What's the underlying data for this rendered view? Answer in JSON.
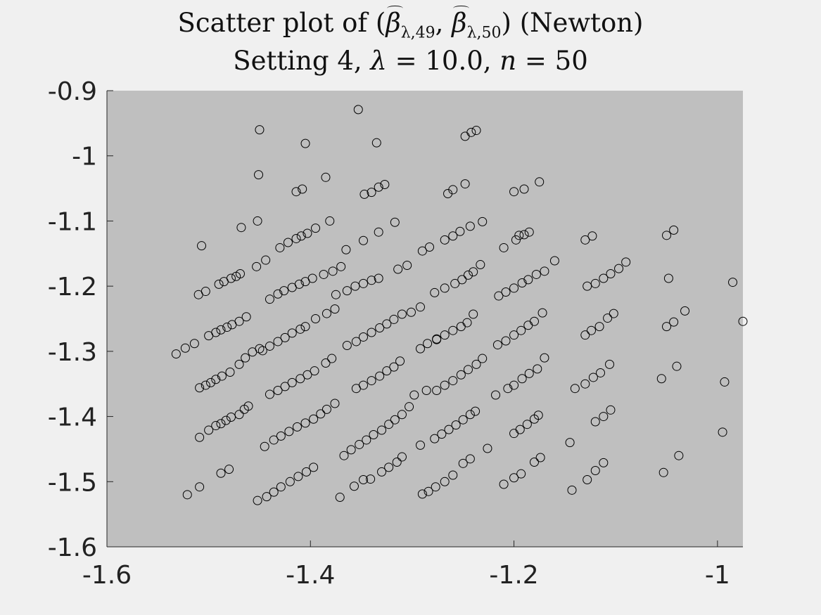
{
  "chart_data": {
    "type": "scatter",
    "title_line1_prefix": "Scatter plot of (",
    "title_beta1": "β",
    "title_sub1": "λ,49",
    "title_sep": ", ",
    "title_beta2": "β",
    "title_sub2": "λ,50",
    "title_line1_suffix": ") (Newton)",
    "title_line2_prefix": "Setting 4, ",
    "title_lambda": "λ",
    "title_lambda_value": " = 10.0, ",
    "title_n": "n",
    "title_n_value": " = 50",
    "xlim": [
      -1.6,
      -0.975
    ],
    "ylim": [
      -1.6,
      -0.9
    ],
    "x_ticks": [
      -1.6,
      -1.4,
      -1.2,
      -1.0
    ],
    "x_tick_labels": [
      "-1.6",
      "-1.4",
      "-1.2",
      "-1"
    ],
    "y_ticks": [
      -0.9,
      -1.0,
      -1.1,
      -1.2,
      -1.3,
      -1.4,
      -1.5,
      -1.6
    ],
    "y_tick_labels": [
      "-0.9",
      "-1",
      "-1.1",
      "-1.2",
      "-1.3",
      "-1.4",
      "-1.5",
      "-1.6"
    ],
    "marker": "open-circle",
    "marker_color": "#000000",
    "axes_background": "#bfbfbf",
    "figure_background": "#f0f0f0",
    "grid": false,
    "series": [
      {
        "points": [
          [
            -1.532,
            -1.304
          ],
          [
            -1.523,
            -1.295
          ],
          [
            -1.514,
            -1.288
          ],
          [
            -1.509,
            -1.356
          ],
          [
            -1.503,
            -1.352
          ],
          [
            -1.498,
            -1.348
          ],
          [
            -1.493,
            -1.343
          ],
          [
            -1.487,
            -1.338
          ],
          [
            -1.479,
            -1.332
          ],
          [
            -1.47,
            -1.32
          ],
          [
            -1.464,
            -1.31
          ],
          [
            -1.457,
            -1.301
          ],
          [
            -1.45,
            -1.296
          ],
          [
            -1.509,
            -1.432
          ],
          [
            -1.5,
            -1.421
          ],
          [
            -1.493,
            -1.414
          ],
          [
            -1.488,
            -1.411
          ],
          [
            -1.483,
            -1.406
          ],
          [
            -1.478,
            -1.401
          ],
          [
            -1.47,
            -1.397
          ],
          [
            -1.465,
            -1.389
          ],
          [
            -1.461,
            -1.384
          ],
          [
            -1.521,
            -1.52
          ],
          [
            -1.509,
            -1.508
          ],
          [
            -1.488,
            -1.487
          ],
          [
            -1.48,
            -1.481
          ],
          [
            -1.507,
            -1.138
          ],
          [
            -1.51,
            -1.213
          ],
          [
            -1.503,
            -1.208
          ],
          [
            -1.49,
            -1.197
          ],
          [
            -1.485,
            -1.193
          ],
          [
            -1.478,
            -1.188
          ],
          [
            -1.473,
            -1.185
          ],
          [
            -1.469,
            -1.181
          ],
          [
            -1.5,
            -1.276
          ],
          [
            -1.493,
            -1.271
          ],
          [
            -1.488,
            -1.267
          ],
          [
            -1.482,
            -1.263
          ],
          [
            -1.477,
            -1.259
          ],
          [
            -1.47,
            -1.254
          ],
          [
            -1.463,
            -1.247
          ],
          [
            -1.468,
            -1.11
          ],
          [
            -1.452,
            -1.1
          ],
          [
            -1.453,
            -1.17
          ],
          [
            -1.444,
            -1.16
          ],
          [
            -1.43,
            -1.141
          ],
          [
            -1.422,
            -1.133
          ],
          [
            -1.414,
            -1.127
          ],
          [
            -1.409,
            -1.123
          ],
          [
            -1.403,
            -1.119
          ],
          [
            -1.395,
            -1.111
          ],
          [
            -1.381,
            -1.1
          ],
          [
            -1.44,
            -1.22
          ],
          [
            -1.432,
            -1.212
          ],
          [
            -1.426,
            -1.207
          ],
          [
            -1.418,
            -1.202
          ],
          [
            -1.411,
            -1.197
          ],
          [
            -1.405,
            -1.193
          ],
          [
            -1.398,
            -1.188
          ],
          [
            -1.387,
            -1.182
          ],
          [
            -1.378,
            -1.177
          ],
          [
            -1.37,
            -1.17
          ],
          [
            -1.447,
            -1.299
          ],
          [
            -1.44,
            -1.292
          ],
          [
            -1.432,
            -1.285
          ],
          [
            -1.425,
            -1.279
          ],
          [
            -1.418,
            -1.272
          ],
          [
            -1.41,
            -1.266
          ],
          [
            -1.405,
            -1.262
          ],
          [
            -1.395,
            -1.25
          ],
          [
            -1.384,
            -1.242
          ],
          [
            -1.376,
            -1.235
          ],
          [
            -1.44,
            -1.366
          ],
          [
            -1.432,
            -1.36
          ],
          [
            -1.425,
            -1.354
          ],
          [
            -1.418,
            -1.348
          ],
          [
            -1.41,
            -1.342
          ],
          [
            -1.403,
            -1.336
          ],
          [
            -1.396,
            -1.33
          ],
          [
            -1.385,
            -1.318
          ],
          [
            -1.379,
            -1.311
          ],
          [
            -1.445,
            -1.446
          ],
          [
            -1.436,
            -1.436
          ],
          [
            -1.429,
            -1.43
          ],
          [
            -1.421,
            -1.423
          ],
          [
            -1.413,
            -1.416
          ],
          [
            -1.405,
            -1.41
          ],
          [
            -1.397,
            -1.404
          ],
          [
            -1.39,
            -1.396
          ],
          [
            -1.384,
            -1.389
          ],
          [
            -1.376,
            -1.38
          ],
          [
            -1.452,
            -1.529
          ],
          [
            -1.443,
            -1.523
          ],
          [
            -1.436,
            -1.516
          ],
          [
            -1.429,
            -1.508
          ],
          [
            -1.42,
            -1.5
          ],
          [
            -1.412,
            -1.492
          ],
          [
            -1.404,
            -1.485
          ],
          [
            -1.397,
            -1.478
          ],
          [
            -1.45,
            -0.96
          ],
          [
            -1.405,
            -0.981
          ],
          [
            -1.353,
            -0.929
          ],
          [
            -1.335,
            -0.98
          ],
          [
            -1.248,
            -0.97
          ],
          [
            -1.242,
            -0.964
          ],
          [
            -1.237,
            -0.961
          ],
          [
            -1.451,
            -1.029
          ],
          [
            -1.385,
            -1.033
          ],
          [
            -1.414,
            -1.055
          ],
          [
            -1.408,
            -1.051
          ],
          [
            -1.347,
            -1.059
          ],
          [
            -1.34,
            -1.056
          ],
          [
            -1.333,
            -1.048
          ],
          [
            -1.327,
            -1.044
          ],
          [
            -1.265,
            -1.058
          ],
          [
            -1.26,
            -1.052
          ],
          [
            -1.248,
            -1.043
          ],
          [
            -1.2,
            -1.055
          ],
          [
            -1.19,
            -1.051
          ],
          [
            -1.175,
            -1.04
          ],
          [
            -1.365,
            -1.144
          ],
          [
            -1.348,
            -1.13
          ],
          [
            -1.333,
            -1.117
          ],
          [
            -1.317,
            -1.102
          ],
          [
            -1.29,
            -1.146
          ],
          [
            -1.283,
            -1.14
          ],
          [
            -1.268,
            -1.129
          ],
          [
            -1.26,
            -1.123
          ],
          [
            -1.253,
            -1.116
          ],
          [
            -1.243,
            -1.108
          ],
          [
            -1.231,
            -1.101
          ],
          [
            -1.375,
            -1.213
          ],
          [
            -1.364,
            -1.207
          ],
          [
            -1.356,
            -1.2
          ],
          [
            -1.348,
            -1.196
          ],
          [
            -1.34,
            -1.191
          ],
          [
            -1.333,
            -1.188
          ],
          [
            -1.314,
            -1.174
          ],
          [
            -1.305,
            -1.168
          ],
          [
            -1.301,
            -1.24
          ],
          [
            -1.292,
            -1.232
          ],
          [
            -1.278,
            -1.21
          ],
          [
            -1.268,
            -1.203
          ],
          [
            -1.258,
            -1.196
          ],
          [
            -1.251,
            -1.19
          ],
          [
            -1.245,
            -1.183
          ],
          [
            -1.24,
            -1.178
          ],
          [
            -1.233,
            -1.167
          ],
          [
            -1.364,
            -1.291
          ],
          [
            -1.355,
            -1.285
          ],
          [
            -1.348,
            -1.278
          ],
          [
            -1.34,
            -1.271
          ],
          [
            -1.332,
            -1.264
          ],
          [
            -1.325,
            -1.258
          ],
          [
            -1.318,
            -1.251
          ],
          [
            -1.31,
            -1.243
          ],
          [
            -1.276,
            -1.282
          ],
          [
            -1.268,
            -1.275
          ],
          [
            -1.26,
            -1.268
          ],
          [
            -1.252,
            -1.262
          ],
          [
            -1.246,
            -1.256
          ],
          [
            -1.24,
            -1.243
          ],
          [
            -1.355,
            -1.357
          ],
          [
            -1.348,
            -1.352
          ],
          [
            -1.34,
            -1.345
          ],
          [
            -1.332,
            -1.338
          ],
          [
            -1.325,
            -1.33
          ],
          [
            -1.318,
            -1.324
          ],
          [
            -1.312,
            -1.315
          ],
          [
            -1.292,
            -1.296
          ],
          [
            -1.285,
            -1.288
          ],
          [
            -1.276,
            -1.281
          ],
          [
            -1.276,
            -1.36
          ],
          [
            -1.268,
            -1.352
          ],
          [
            -1.26,
            -1.345
          ],
          [
            -1.252,
            -1.336
          ],
          [
            -1.245,
            -1.328
          ],
          [
            -1.237,
            -1.32
          ],
          [
            -1.231,
            -1.311
          ],
          [
            -1.298,
            -1.367
          ],
          [
            -1.286,
            -1.36
          ],
          [
            -1.367,
            -1.46
          ],
          [
            -1.36,
            -1.451
          ],
          [
            -1.352,
            -1.443
          ],
          [
            -1.345,
            -1.436
          ],
          [
            -1.338,
            -1.428
          ],
          [
            -1.33,
            -1.421
          ],
          [
            -1.323,
            -1.412
          ],
          [
            -1.317,
            -1.405
          ],
          [
            -1.31,
            -1.397
          ],
          [
            -1.303,
            -1.385
          ],
          [
            -1.292,
            -1.444
          ],
          [
            -1.278,
            -1.434
          ],
          [
            -1.271,
            -1.427
          ],
          [
            -1.264,
            -1.42
          ],
          [
            -1.257,
            -1.413
          ],
          [
            -1.25,
            -1.405
          ],
          [
            -1.243,
            -1.397
          ],
          [
            -1.238,
            -1.392
          ],
          [
            -1.371,
            -1.524
          ],
          [
            -1.357,
            -1.507
          ],
          [
            -1.348,
            -1.497
          ],
          [
            -1.341,
            -1.496
          ],
          [
            -1.33,
            -1.485
          ],
          [
            -1.323,
            -1.478
          ],
          [
            -1.315,
            -1.47
          ],
          [
            -1.31,
            -1.462
          ],
          [
            -1.29,
            -1.519
          ],
          [
            -1.284,
            -1.515
          ],
          [
            -1.277,
            -1.508
          ],
          [
            -1.268,
            -1.5
          ],
          [
            -1.26,
            -1.49
          ],
          [
            -1.25,
            -1.472
          ],
          [
            -1.243,
            -1.465
          ],
          [
            -1.226,
            -1.449
          ],
          [
            -1.198,
            -1.129
          ],
          [
            -1.19,
            -1.121
          ],
          [
            -1.185,
            -1.117
          ],
          [
            -1.21,
            -1.141
          ],
          [
            -1.195,
            -1.122
          ],
          [
            -1.215,
            -1.215
          ],
          [
            -1.208,
            -1.209
          ],
          [
            -1.2,
            -1.203
          ],
          [
            -1.192,
            -1.195
          ],
          [
            -1.186,
            -1.19
          ],
          [
            -1.178,
            -1.182
          ],
          [
            -1.17,
            -1.177
          ],
          [
            -1.16,
            -1.161
          ],
          [
            -1.216,
            -1.29
          ],
          [
            -1.208,
            -1.284
          ],
          [
            -1.2,
            -1.275
          ],
          [
            -1.193,
            -1.268
          ],
          [
            -1.186,
            -1.26
          ],
          [
            -1.18,
            -1.254
          ],
          [
            -1.172,
            -1.241
          ],
          [
            -1.206,
            -1.357
          ],
          [
            -1.2,
            -1.352
          ],
          [
            -1.192,
            -1.342
          ],
          [
            -1.185,
            -1.334
          ],
          [
            -1.177,
            -1.327
          ],
          [
            -1.17,
            -1.31
          ],
          [
            -1.2,
            -1.426
          ],
          [
            -1.194,
            -1.42
          ],
          [
            -1.187,
            -1.412
          ],
          [
            -1.18,
            -1.404
          ],
          [
            -1.176,
            -1.398
          ],
          [
            -1.218,
            -1.367
          ],
          [
            -1.21,
            -1.504
          ],
          [
            -1.2,
            -1.494
          ],
          [
            -1.193,
            -1.488
          ],
          [
            -1.18,
            -1.47
          ],
          [
            -1.174,
            -1.463
          ],
          [
            -1.13,
            -1.129
          ],
          [
            -1.123,
            -1.123
          ],
          [
            -1.128,
            -1.2
          ],
          [
            -1.12,
            -1.196
          ],
          [
            -1.112,
            -1.188
          ],
          [
            -1.105,
            -1.181
          ],
          [
            -1.097,
            -1.173
          ],
          [
            -1.09,
            -1.163
          ],
          [
            -1.13,
            -1.275
          ],
          [
            -1.124,
            -1.268
          ],
          [
            -1.116,
            -1.262
          ],
          [
            -1.108,
            -1.249
          ],
          [
            -1.102,
            -1.242
          ],
          [
            -1.14,
            -1.357
          ],
          [
            -1.13,
            -1.35
          ],
          [
            -1.122,
            -1.34
          ],
          [
            -1.115,
            -1.333
          ],
          [
            -1.106,
            -1.32
          ],
          [
            -1.12,
            -1.408
          ],
          [
            -1.112,
            -1.4
          ],
          [
            -1.105,
            -1.39
          ],
          [
            -1.145,
            -1.44
          ],
          [
            -1.128,
            -1.497
          ],
          [
            -1.12,
            -1.483
          ],
          [
            -1.112,
            -1.471
          ],
          [
            -1.143,
            -1.513
          ],
          [
            -1.05,
            -1.122
          ],
          [
            -1.043,
            -1.114
          ],
          [
            -1.048,
            -1.188
          ],
          [
            -1.05,
            -1.262
          ],
          [
            -1.043,
            -1.255
          ],
          [
            -1.04,
            -1.323
          ],
          [
            -1.032,
            -1.238
          ],
          [
            -1.055,
            -1.342
          ],
          [
            -1.038,
            -1.46
          ],
          [
            -1.053,
            -1.486
          ],
          [
            -0.985,
            -1.194
          ],
          [
            -0.975,
            -1.254
          ],
          [
            -0.993,
            -1.347
          ],
          [
            -0.995,
            -1.424
          ]
        ]
      }
    ]
  }
}
